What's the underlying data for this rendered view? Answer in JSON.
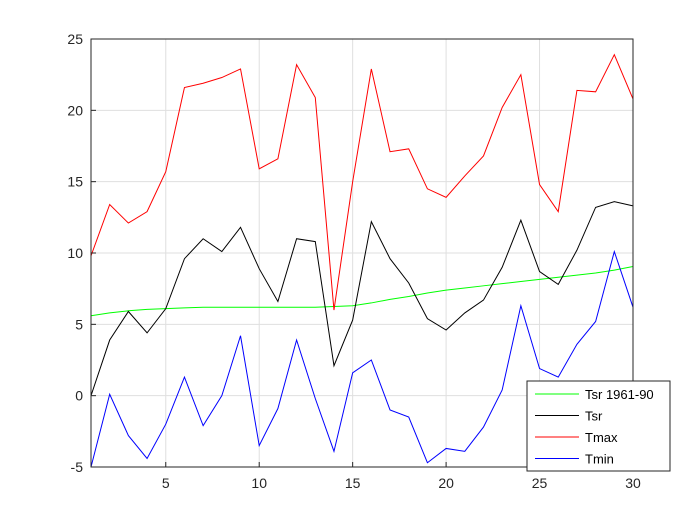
{
  "chart_data": {
    "type": "line",
    "title": "",
    "xlabel": "",
    "ylabel": "",
    "xlim": [
      1,
      30
    ],
    "ylim": [
      -5,
      25
    ],
    "x_ticks": [
      5,
      10,
      15,
      20,
      25,
      30
    ],
    "y_ticks": [
      -5,
      0,
      5,
      10,
      15,
      20,
      25
    ],
    "grid": true,
    "legend_position": "bottom-right",
    "x": [
      1,
      2,
      3,
      4,
      5,
      6,
      7,
      8,
      9,
      10,
      11,
      12,
      13,
      14,
      15,
      16,
      17,
      18,
      19,
      20,
      21,
      22,
      23,
      24,
      25,
      26,
      27,
      28,
      29,
      30
    ],
    "series": [
      {
        "name": "Tsr 1961-90",
        "color": "#00ff00",
        "values": [
          5.6,
          5.8,
          5.95,
          6.05,
          6.1,
          6.15,
          6.2,
          6.2,
          6.2,
          6.2,
          6.2,
          6.2,
          6.2,
          6.25,
          6.3,
          6.5,
          6.75,
          6.95,
          7.2,
          7.4,
          7.55,
          7.7,
          7.85,
          8.0,
          8.15,
          8.3,
          8.45,
          8.6,
          8.8,
          9.05
        ]
      },
      {
        "name": "Tsr",
        "color": "#000000",
        "values": [
          0.0,
          3.9,
          5.9,
          4.4,
          6.1,
          9.6,
          11.0,
          10.1,
          11.8,
          8.9,
          6.6,
          11.0,
          10.8,
          2.1,
          5.3,
          12.2,
          9.6,
          7.9,
          5.4,
          4.6,
          5.8,
          6.7,
          9.0,
          12.3,
          8.7,
          7.8,
          10.2,
          13.2,
          13.6,
          13.3
        ]
      },
      {
        "name": "Tmax",
        "color": "#ff0000",
        "values": [
          9.8,
          13.4,
          12.1,
          12.9,
          15.7,
          21.6,
          21.9,
          22.3,
          22.9,
          15.9,
          16.6,
          23.2,
          20.9,
          6.0,
          15.0,
          22.9,
          17.1,
          17.3,
          14.5,
          13.9,
          15.4,
          16.8,
          20.2,
          22.5,
          14.8,
          12.9,
          21.4,
          21.3,
          23.9,
          20.8
        ]
      },
      {
        "name": "Tmin",
        "color": "#0000ff",
        "values": [
          -5.0,
          0.1,
          -2.8,
          -4.4,
          -2.0,
          1.3,
          -2.1,
          0.0,
          4.2,
          -3.5,
          -0.9,
          3.9,
          -0.2,
          -3.9,
          1.6,
          2.5,
          -1.0,
          -1.5,
          -4.7,
          -3.7,
          -3.9,
          -2.2,
          0.4,
          6.3,
          1.9,
          1.3,
          3.6,
          5.2,
          10.1,
          6.2
        ]
      }
    ]
  }
}
